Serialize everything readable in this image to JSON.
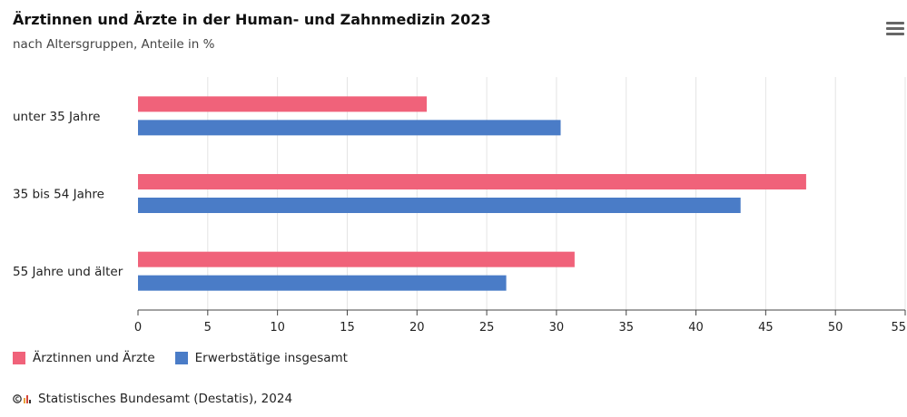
{
  "header": {
    "title": "Ärztinnen und Ärzte in der Human- und Zahnmedizin 2023",
    "subtitle": "nach Altersgruppen, Anteile in %"
  },
  "menu_icon": "hamburger-menu-icon",
  "credit": {
    "text": "Statistisches Bundesamt (Destatis), 2024"
  },
  "colors": {
    "series1": "#f0627a",
    "series2": "#4a7cc7",
    "grid": "#e4e4e4",
    "axis": "#444444"
  },
  "chart_data": {
    "type": "bar",
    "orientation": "horizontal",
    "title": "Ärztinnen und Ärzte in der Human- und Zahnmedizin 2023",
    "subtitle": "nach Altersgruppen, Anteile in %",
    "categories": [
      "unter 35 Jahre",
      "35 bis 54 Jahre",
      "55 Jahre und älter"
    ],
    "series": [
      {
        "name": "Ärztinnen und Ärzte",
        "values": [
          20.7,
          47.9,
          31.3
        ]
      },
      {
        "name": "Erwerbstätige insgesamt",
        "values": [
          30.3,
          43.2,
          26.4
        ]
      }
    ],
    "xlim": [
      0,
      55
    ],
    "xticks": [
      0,
      5,
      10,
      15,
      20,
      25,
      30,
      35,
      40,
      45,
      50,
      55
    ],
    "grid": true,
    "legend_position": "bottom-left"
  }
}
